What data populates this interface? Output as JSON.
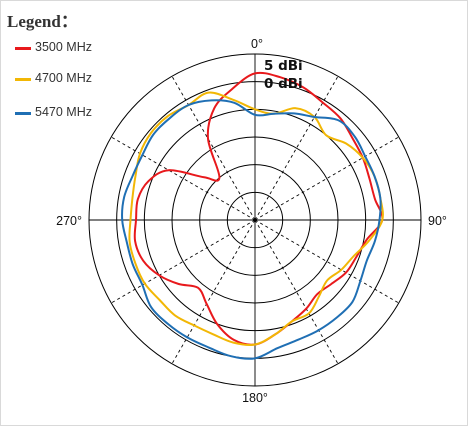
{
  "chart_data": {
    "type": "polar-line",
    "legend_title": "Legend：",
    "legend_placement": "top-left",
    "angular_labels": [
      {
        "deg": 0,
        "text": "0°"
      },
      {
        "deg": 90,
        "text": "90°"
      },
      {
        "deg": 180,
        "text": "180°"
      },
      {
        "deg": 270,
        "text": "270°"
      }
    ],
    "ring_labels": [
      {
        "value": 5,
        "text": "5 dBi"
      },
      {
        "value": 0,
        "text": "0 dBi"
      }
    ],
    "r_scale": {
      "max": 5,
      "ring_step": 5,
      "rings": 6
    },
    "spokes_every_deg": 30,
    "series": [
      {
        "name": "3500 MHz",
        "color": "#e8191c",
        "points": [
          [
            0,
            1.5
          ],
          [
            10,
            1.2
          ],
          [
            20,
            0.5
          ],
          [
            30,
            -0.5
          ],
          [
            40,
            -1.0
          ],
          [
            50,
            -2.0
          ],
          [
            60,
            -2.5
          ],
          [
            70,
            -3.0
          ],
          [
            80,
            -3.0
          ],
          [
            90,
            -2.0
          ],
          [
            100,
            -4.5
          ],
          [
            110,
            -5.5
          ],
          [
            120,
            -6.0
          ],
          [
            130,
            -7.0
          ],
          [
            140,
            -7.5
          ],
          [
            150,
            -6.5
          ],
          [
            160,
            -5.5
          ],
          [
            170,
            -4.0
          ],
          [
            180,
            -2.5
          ],
          [
            190,
            -3.0
          ],
          [
            200,
            -5.0
          ],
          [
            210,
            -7.5
          ],
          [
            220,
            -9.0
          ],
          [
            230,
            -7.0
          ],
          [
            240,
            -5.0
          ],
          [
            250,
            -3.5
          ],
          [
            260,
            -3.0
          ],
          [
            270,
            -3.5
          ],
          [
            280,
            -3.5
          ],
          [
            290,
            -4.5
          ],
          [
            300,
            -7.0
          ],
          [
            310,
            -13.0
          ],
          [
            320,
            -15.0
          ],
          [
            330,
            -8.0
          ],
          [
            340,
            -3.5
          ],
          [
            350,
            -1.0
          ],
          [
            360,
            1.5
          ]
        ]
      },
      {
        "name": "4700 MHz",
        "color": "#f2b705",
        "points": [
          [
            0,
            -5.0
          ],
          [
            10,
            -5.5
          ],
          [
            20,
            -3.5
          ],
          [
            30,
            -3.5
          ],
          [
            40,
            -5.0
          ],
          [
            50,
            -3.5
          ],
          [
            60,
            -2.5
          ],
          [
            70,
            -2.0
          ],
          [
            80,
            -2.0
          ],
          [
            90,
            -2.0
          ],
          [
            100,
            -4.0
          ],
          [
            110,
            -6.0
          ],
          [
            120,
            -7.0
          ],
          [
            130,
            -8.0
          ],
          [
            140,
            -7.0
          ],
          [
            150,
            -5.5
          ],
          [
            160,
            -5.5
          ],
          [
            170,
            -4.0
          ],
          [
            180,
            -2.5
          ],
          [
            190,
            -2.5
          ],
          [
            200,
            -3.0
          ],
          [
            210,
            -3.0
          ],
          [
            220,
            -2.5
          ],
          [
            230,
            -2.5
          ],
          [
            240,
            -2.0
          ],
          [
            250,
            -2.0
          ],
          [
            260,
            -2.0
          ],
          [
            270,
            -2.5
          ],
          [
            280,
            -2.5
          ],
          [
            290,
            -2.0
          ],
          [
            300,
            -1.0
          ],
          [
            310,
            -0.5
          ],
          [
            320,
            -0.5
          ],
          [
            330,
            -1.0
          ],
          [
            340,
            -0.5
          ],
          [
            350,
            -3.0
          ],
          [
            360,
            -5.0
          ]
        ]
      },
      {
        "name": "5470 MHz",
        "color": "#1f6fb4",
        "points": [
          [
            0,
            -6.0
          ],
          [
            10,
            -5.5
          ],
          [
            20,
            -4.5
          ],
          [
            30,
            -3.5
          ],
          [
            40,
            -1.5
          ],
          [
            50,
            -1.5
          ],
          [
            60,
            -2.0
          ],
          [
            70,
            -2.0
          ],
          [
            80,
            -2.0
          ],
          [
            90,
            -2.5
          ],
          [
            100,
            -3.0
          ],
          [
            110,
            -3.5
          ],
          [
            120,
            -3.0
          ],
          [
            130,
            -2.0
          ],
          [
            140,
            -2.0
          ],
          [
            150,
            -2.0
          ],
          [
            160,
            -2.0
          ],
          [
            170,
            -1.5
          ],
          [
            180,
            0.0
          ],
          [
            190,
            0.0
          ],
          [
            200,
            -0.5
          ],
          [
            210,
            -0.5
          ],
          [
            220,
            -0.5
          ],
          [
            230,
            -0.5
          ],
          [
            240,
            -1.5
          ],
          [
            250,
            -1.5
          ],
          [
            260,
            -1.5
          ],
          [
            270,
            -1.0
          ],
          [
            280,
            -1.0
          ],
          [
            290,
            -1.5
          ],
          [
            300,
            -1.5
          ],
          [
            310,
            -1.0
          ],
          [
            320,
            -1.0
          ],
          [
            330,
            -1.0
          ],
          [
            340,
            -2.0
          ],
          [
            350,
            -3.5
          ],
          [
            360,
            -6.0
          ]
        ]
      }
    ]
  }
}
